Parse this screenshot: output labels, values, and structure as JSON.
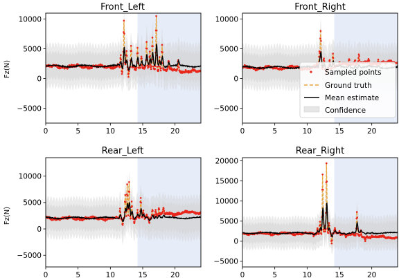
{
  "legend": {
    "placement": "right, inside Front_Right panel",
    "entries": [
      {
        "label": "Sampled points",
        "style": "red dots",
        "color": "#e8261c"
      },
      {
        "label": "Ground truth",
        "style": "dashed line",
        "color": "#e8a33c"
      },
      {
        "label": "Mean estimate",
        "style": "solid line",
        "color": "#000000"
      },
      {
        "label": "Confidence",
        "style": "filled band",
        "color": "#d9d9d9"
      }
    ]
  },
  "colors": {
    "sampled": "#e8261c",
    "ground_truth": "#e8a33c",
    "mean": "#000000",
    "confidence": "#d3d3d3",
    "highlight": "#e6ecf8"
  },
  "chart_data": [
    {
      "type": "line",
      "title": "Front_Left",
      "xlabel": "",
      "ylabel": "Fz(N)",
      "xlim": [
        0,
        24
      ],
      "ylim": [
        -7500,
        11000
      ],
      "xticks": [
        0,
        5,
        10,
        15,
        20
      ],
      "yticks": [
        -5000,
        0,
        5000,
        10000
      ],
      "highlight_x": [
        14.2,
        24
      ],
      "baseline": 2000,
      "band_halfwidth": 2300,
      "spikes": [
        [
          11.2,
          500
        ],
        [
          11.6,
          1800
        ],
        [
          11.8,
          -1500
        ],
        [
          12.1,
          7500
        ],
        [
          12.5,
          2500
        ],
        [
          12.8,
          -1500
        ],
        [
          13.2,
          3500
        ],
        [
          13.6,
          500
        ],
        [
          14.2,
          3500
        ],
        [
          14.8,
          2000
        ],
        [
          15.6,
          4200
        ],
        [
          16.1,
          2800
        ],
        [
          16.5,
          5300
        ],
        [
          17.1,
          9000
        ],
        [
          17.6,
          2300
        ],
        [
          18.0,
          4200
        ],
        [
          19.0,
          1500
        ],
        [
          20.5,
          1800
        ]
      ],
      "truth_drift": [
        [
          0,
          0
        ],
        [
          12,
          0
        ],
        [
          18,
          -500
        ],
        [
          24,
          -900
        ]
      ],
      "mean_offset": 100
    },
    {
      "type": "line",
      "title": "Front_Right",
      "xlabel": "",
      "ylabel": "",
      "xlim": [
        0,
        24
      ],
      "ylim": [
        -7500,
        11000
      ],
      "xticks": [
        0,
        5,
        10,
        15,
        20
      ],
      "yticks": [
        -5000,
        0,
        5000,
        10000
      ],
      "highlight_x": [
        14.2,
        24
      ],
      "baseline": 1800,
      "band_halfwidth": 2300,
      "spikes": [
        [
          11.5,
          800
        ],
        [
          11.9,
          2500
        ],
        [
          12.1,
          6000
        ],
        [
          12.6,
          1800
        ],
        [
          13.0,
          -600
        ],
        [
          13.5,
          1500
        ],
        [
          14.0,
          2500
        ],
        [
          15.0,
          700
        ],
        [
          16.5,
          1000
        ],
        [
          17.4,
          900
        ],
        [
          18.0,
          1300
        ],
        [
          19.5,
          600
        ],
        [
          21.0,
          800
        ]
      ],
      "truth_drift": [
        [
          0,
          0
        ],
        [
          14,
          0
        ],
        [
          16,
          700
        ],
        [
          24,
          900
        ]
      ],
      "mean_offset": 80
    },
    {
      "type": "line",
      "title": "Rear_Left",
      "xlabel": "",
      "ylabel": "Fz(N)",
      "xlim": [
        0,
        24
      ],
      "ylim": [
        -7200,
        13500
      ],
      "xticks": [
        0,
        5,
        10,
        15,
        20
      ],
      "yticks": [
        -5000,
        0,
        5000,
        10000
      ],
      "highlight_x": [
        14.2,
        24
      ],
      "baseline": 2000,
      "band_halfwidth": 2400,
      "spikes": [
        [
          11.5,
          1800
        ],
        [
          11.9,
          -1300
        ],
        [
          12.3,
          4500
        ],
        [
          12.6,
          6500
        ],
        [
          12.9,
          7000
        ],
        [
          13.3,
          3000
        ],
        [
          13.7,
          -800
        ],
        [
          14.2,
          1500
        ],
        [
          14.7,
          3800
        ],
        [
          15.1,
          1500
        ],
        [
          15.6,
          600
        ],
        [
          16.0,
          -1000
        ],
        [
          16.5,
          1500
        ],
        [
          17.0,
          1000
        ],
        [
          17.5,
          1300
        ],
        [
          18.2,
          1000
        ]
      ],
      "truth_drift": [
        [
          0,
          0
        ],
        [
          15,
          0
        ],
        [
          18,
          800
        ],
        [
          24,
          1200
        ]
      ],
      "mean_offset": 100
    },
    {
      "type": "line",
      "title": "Rear_Right",
      "xlabel": "",
      "ylabel": "",
      "xlim": [
        0,
        24
      ],
      "ylim": [
        -6400,
        20800
      ],
      "xticks": [
        0,
        5,
        10,
        15,
        20
      ],
      "yticks": [
        -5000,
        0,
        5000,
        10000,
        15000,
        20000
      ],
      "highlight_x": [
        14.2,
        24
      ],
      "baseline": 1900,
      "band_halfwidth": 2500,
      "spikes": [
        [
          11.0,
          -800
        ],
        [
          11.6,
          1500
        ],
        [
          12.0,
          3000
        ],
        [
          12.4,
          15000
        ],
        [
          12.7,
          2000
        ],
        [
          13.0,
          17500
        ],
        [
          13.4,
          2500
        ],
        [
          13.8,
          -2500
        ],
        [
          14.3,
          1200
        ],
        [
          15.0,
          700
        ],
        [
          16.0,
          -700
        ],
        [
          17.0,
          500
        ],
        [
          17.7,
          6000
        ],
        [
          18.3,
          1300
        ],
        [
          19.0,
          -900
        ],
        [
          20.0,
          400
        ]
      ],
      "truth_drift": [
        [
          0,
          0
        ],
        [
          16,
          0
        ],
        [
          18,
          -700
        ],
        [
          24,
          -1000
        ]
      ],
      "mean_offset": 150
    }
  ]
}
